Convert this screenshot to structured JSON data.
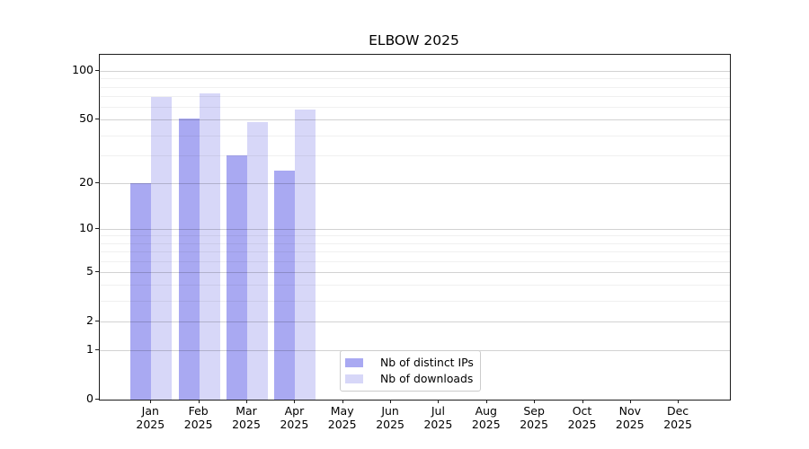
{
  "title": "ELBOW 2025",
  "chart_data": {
    "type": "bar",
    "title": "ELBOW 2025",
    "xlabel": "",
    "ylabel": "",
    "year": "2025",
    "categories": [
      "Jan",
      "Feb",
      "Mar",
      "Apr",
      "May",
      "Jun",
      "Jul",
      "Aug",
      "Sep",
      "Oct",
      "Nov",
      "Dec"
    ],
    "series": [
      {
        "name": "Nb of distinct IPs",
        "color": "#a9a9f2",
        "values": [
          20,
          51,
          30,
          24,
          0,
          0,
          0,
          0,
          0,
          0,
          0,
          0
        ]
      },
      {
        "name": "Nb of downloads",
        "color": "#d7d7f8",
        "values": [
          69,
          73,
          48,
          58,
          0,
          0,
          0,
          0,
          0,
          0,
          0,
          0
        ]
      }
    ],
    "y_scale": "log10(1+value), 0 at baseline",
    "y_ticks": [
      100,
      50,
      20,
      10,
      5,
      2,
      1,
      0
    ],
    "y_minor_gridlines": [
      90,
      80,
      70,
      60,
      40,
      30,
      9,
      8,
      7,
      6,
      4,
      3
    ],
    "ylim": [
      0,
      125
    ],
    "grid": "horizontal, major and minor, drawn over bars",
    "legend_position": "inside lower-center-left",
    "legend_entries": [
      "Nb of distinct IPs",
      "Nb of downloads"
    ]
  }
}
